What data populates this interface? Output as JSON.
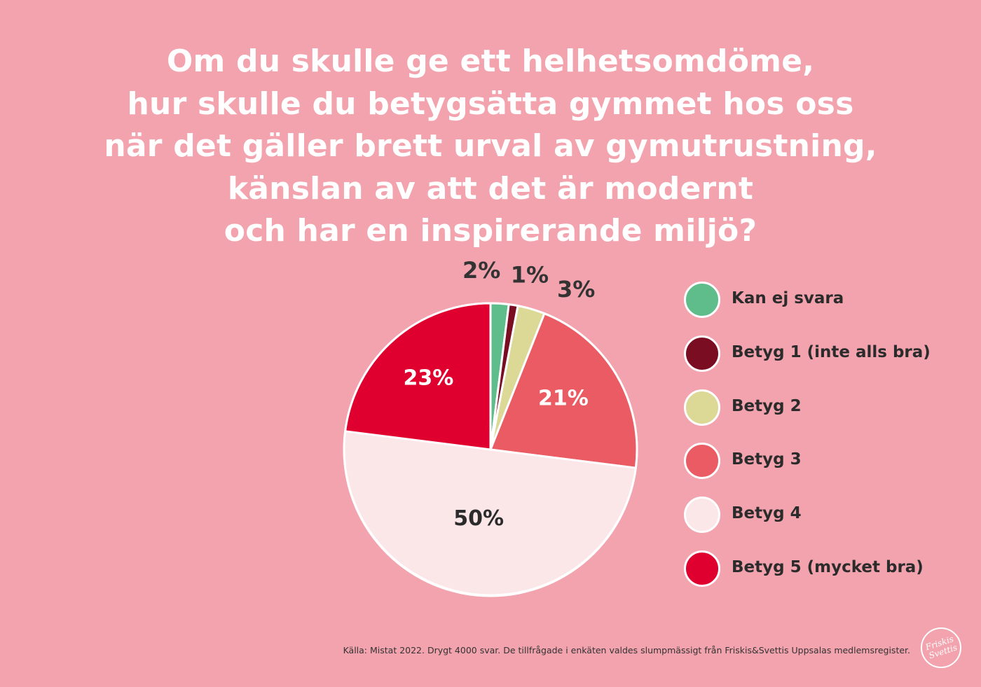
{
  "title_lines": [
    "Om du skulle ge ett helhetsomdöme,",
    "hur skulle du betygsätta gymmet hos oss",
    "när det gäller brett urval av gymutrustning,",
    "känslan av att det är modernt",
    "och har en inspirerande miljö?"
  ],
  "chart_data": {
    "type": "pie",
    "title": "Om du skulle ge ett helhetsomdöme, hur skulle du betygsätta gymmet hos oss när det gäller brett urval av gymutrustning, känslan av att det är modernt och har en inspirerande miljö?",
    "unit": "%",
    "legend_position": "right",
    "slices": [
      {
        "name": "Kan ej svara",
        "value": 2,
        "label": "2%",
        "color": "#5ebd8a"
      },
      {
        "name": "Betyg 1 (inte alls bra)",
        "value": 1,
        "label": "1%",
        "color": "#7a0d22"
      },
      {
        "name": "Betyg 2",
        "value": 3,
        "label": "3%",
        "color": "#dcd896"
      },
      {
        "name": "Betyg 3",
        "value": 21,
        "label": "21%",
        "color": "#ea5b63"
      },
      {
        "name": "Betyg 4",
        "value": 50,
        "label": "50%",
        "color": "#fbe6e8"
      },
      {
        "name": "Betyg 5 (mycket bra)",
        "value": 23,
        "label": "23%",
        "color": "#e00030"
      }
    ]
  },
  "source": "Källa: Mistat 2022. Drygt 4000 svar. De tillfrågade i enkäten valdes slumpmässigt från Friskis&Svettis Uppsalas medlemsregister.",
  "logo_text": [
    "Friskis",
    "Svettis"
  ]
}
